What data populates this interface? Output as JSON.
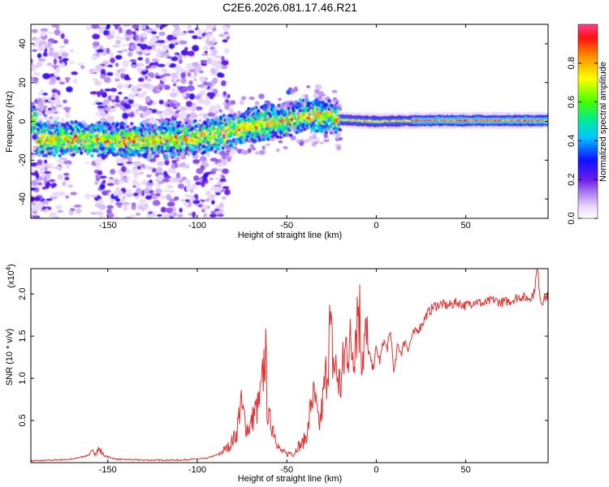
{
  "title": "C2E6.2026.081.17.46.R21",
  "colors": {
    "line": "#e03030",
    "axis": "#000000",
    "background": "#ffffff"
  },
  "chart_data": [
    {
      "type": "heatmap",
      "name": "spectrogram",
      "xlabel": "Height of straight line (km)",
      "ylabel": "Frequency (Hz)",
      "xlim": [
        -193,
        96
      ],
      "ylim": [
        -50,
        50
      ],
      "xticks": [
        -150,
        -100,
        -50,
        0,
        50
      ],
      "yticks": [
        -40,
        -20,
        0,
        20,
        40
      ],
      "xtick_labels": [
        "-150",
        "-100",
        "-50",
        "0",
        "50"
      ],
      "ytick_labels": [
        "-40",
        "-20",
        "0",
        "20",
        "40"
      ],
      "colorbar": {
        "label": "Normalized spectral amplitude",
        "range": [
          0,
          1
        ],
        "ticks": [
          0.0,
          0.2,
          0.4,
          0.6,
          0.8
        ],
        "tick_labels": [
          "0.0",
          "0.2",
          "0.4",
          "0.6",
          "0.8"
        ]
      },
      "ridge": [
        {
          "x": -190,
          "f": -9
        },
        {
          "x": -160,
          "f": -9
        },
        {
          "x": -140,
          "f": -10
        },
        {
          "x": -110,
          "f": -9
        },
        {
          "x": -90,
          "f": -7
        },
        {
          "x": -70,
          "f": -2
        },
        {
          "x": -55,
          "f": 0
        },
        {
          "x": -40,
          "f": 3
        },
        {
          "x": -30,
          "f": 3
        },
        {
          "x": -20,
          "f": 1
        },
        {
          "x": 0,
          "f": 0
        },
        {
          "x": 30,
          "f": 0.5
        },
        {
          "x": 95,
          "f": 0.5
        }
      ]
    },
    {
      "type": "line",
      "name": "snr",
      "xlabel": "Height of straight line (km)",
      "ylabel": "SNR (10 * v/v)",
      "yscale_label_base": "(x10",
      "yscale_label_exp": "4",
      "yscale_label_close": ")",
      "xlim": [
        -193,
        96
      ],
      "ylim": [
        0,
        2.3
      ],
      "xticks": [
        -150,
        -100,
        -50,
        0,
        50
      ],
      "yticks": [
        0.5,
        1.0,
        1.5,
        2.0
      ],
      "xtick_labels": [
        "-150",
        "-100",
        "-50",
        "0",
        "50"
      ],
      "ytick_labels": [
        "0.5",
        "1.0",
        "1.5",
        "2.0"
      ],
      "series": [
        {
          "name": "SNR",
          "x": [
            -193,
            -180,
            -170,
            -162,
            -158,
            -155,
            -152,
            -145,
            -130,
            -110,
            -95,
            -88,
            -82,
            -78,
            -76,
            -74,
            -72,
            -70,
            -68,
            -66,
            -64,
            -62,
            -61,
            -60,
            -58,
            -56,
            -54,
            -52,
            -50,
            -48,
            -46,
            -44,
            -42,
            -40,
            -38,
            -36,
            -34,
            -32,
            -30,
            -28,
            -26,
            -24,
            -22,
            -20,
            -18,
            -16,
            -14,
            -12,
            -10,
            -8,
            -6,
            -4,
            -2,
            0,
            2,
            4,
            6,
            8,
            10,
            12,
            14,
            16,
            18,
            20,
            22,
            25,
            28,
            32,
            36,
            40,
            45,
            50,
            55,
            60,
            65,
            70,
            75,
            80,
            85,
            88,
            90,
            92,
            94,
            96
          ],
          "y": [
            0.02,
            0.03,
            0.04,
            0.08,
            0.12,
            0.16,
            0.08,
            0.04,
            0.03,
            0.03,
            0.05,
            0.1,
            0.2,
            0.35,
            0.7,
            0.55,
            0.4,
            0.45,
            0.6,
            0.65,
            0.85,
            1.38,
            0.7,
            0.5,
            0.45,
            0.3,
            0.15,
            0.12,
            0.1,
            0.12,
            0.1,
            0.2,
            0.2,
            0.28,
            0.4,
            0.8,
            0.7,
            0.4,
            0.7,
            1.05,
            1.55,
            1.2,
            1.05,
            0.9,
            1.2,
            1.5,
            1.3,
            1.55,
            1.92,
            1.35,
            1.45,
            1.3,
            1.1,
            1.35,
            1.2,
            1.45,
            1.35,
            1.55,
            1.05,
            1.4,
            1.3,
            1.45,
            1.35,
            1.5,
            1.55,
            1.62,
            1.75,
            1.85,
            1.88,
            1.86,
            1.9,
            1.86,
            1.92,
            1.88,
            1.93,
            1.9,
            1.92,
            1.97,
            1.95,
            2.0,
            2.3,
            1.9,
            1.95,
            1.98
          ]
        }
      ]
    }
  ]
}
